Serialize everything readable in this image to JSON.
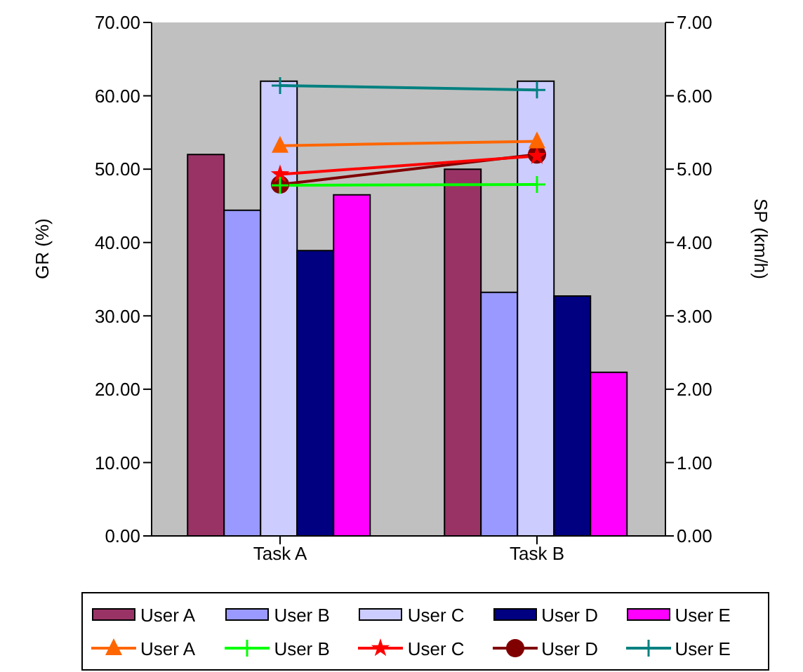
{
  "chart_data": {
    "type": "bar",
    "xlabel": null,
    "ylabel": "GR (%)",
    "y2label": "SP (km/h)",
    "categories": [
      "Task A",
      "Task B"
    ],
    "series": [
      {
        "name": "User A",
        "color": "#993366",
        "values": [
          52.0,
          50.0
        ]
      },
      {
        "name": "User B",
        "color": "#9999ff",
        "values": [
          44.4,
          33.2
        ]
      },
      {
        "name": "User C",
        "color": "#ccccff",
        "values": [
          62.0,
          62.0
        ]
      },
      {
        "name": "User D",
        "color": "#000080",
        "values": [
          38.9,
          32.7
        ]
      },
      {
        "name": "User E",
        "color": "#ff00ff",
        "values": [
          46.5,
          22.3
        ]
      },
      {
        "name": "User A",
        "type": "line",
        "axis": "y2",
        "marker": "triangle",
        "color": "#ff6600",
        "values": [
          5.32,
          5.38
        ]
      },
      {
        "name": "User B",
        "type": "line",
        "axis": "y2",
        "marker": "cross",
        "color": "#00ff00",
        "values": [
          4.78,
          4.79
        ]
      },
      {
        "name": "User C",
        "type": "line",
        "axis": "y2",
        "marker": "star",
        "color": "#ff0000",
        "values": [
          4.93,
          5.18
        ]
      },
      {
        "name": "User D",
        "type": "line",
        "axis": "y2",
        "marker": "circle",
        "color": "#800000",
        "values": [
          4.79,
          5.2
        ]
      },
      {
        "name": "User E",
        "type": "line",
        "axis": "y2",
        "marker": "cross",
        "color": "#008080",
        "values": [
          6.14,
          6.08
        ]
      }
    ],
    "ylim": [
      0,
      70
    ],
    "yticks": [
      {
        "value": 0,
        "label": "0.00"
      },
      {
        "value": 10,
        "label": "10.00"
      },
      {
        "value": 20,
        "label": "20.00"
      },
      {
        "value": 30,
        "label": "30.00"
      },
      {
        "value": 40,
        "label": "40.00"
      },
      {
        "value": 50,
        "label": "50.00"
      },
      {
        "value": 60,
        "label": "60.00"
      },
      {
        "value": 70,
        "label": "70.00"
      }
    ],
    "y2lim": [
      0,
      7
    ],
    "y2ticks": [
      {
        "value": 0,
        "label": "0.00"
      },
      {
        "value": 1,
        "label": "1.00"
      },
      {
        "value": 2,
        "label": "2.00"
      },
      {
        "value": 3,
        "label": "3.00"
      },
      {
        "value": 4,
        "label": "4.00"
      },
      {
        "value": 5,
        "label": "5.00"
      },
      {
        "value": 6,
        "label": "6.00"
      },
      {
        "value": 7,
        "label": "7.00"
      }
    ],
    "grid": false,
    "legend": "bottom"
  }
}
